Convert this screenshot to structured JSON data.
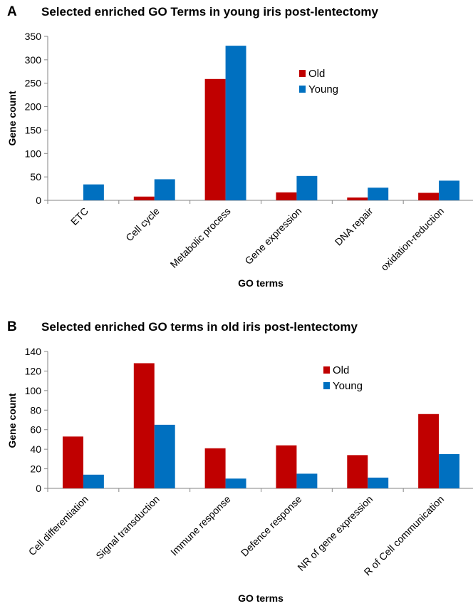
{
  "colors": {
    "old": "#c00000",
    "young": "#0070c0"
  },
  "chart_data": [
    {
      "type": "bar",
      "panel": "A",
      "title": "Selected enriched GO Terms in young iris post-lentectomy",
      "xlabel": "GO terms",
      "ylabel": "Gene count",
      "ylim": [
        0,
        350
      ],
      "yticks": [
        0,
        50,
        100,
        150,
        200,
        250,
        300,
        350
      ],
      "categories": [
        "ETC",
        "Cell cycle",
        "Metabolic process",
        "Gene expression",
        "DNA repair",
        "oxidation-reduction"
      ],
      "series": [
        {
          "name": "Old",
          "values": [
            0,
            8,
            259,
            17,
            6,
            16
          ]
        },
        {
          "name": "Young",
          "values": [
            34,
            45,
            330,
            52,
            27,
            42
          ]
        }
      ],
      "legend_position": "right",
      "grid": false
    },
    {
      "type": "bar",
      "panel": "B",
      "title": "Selected enriched GO terms in old iris post-lentectomy",
      "xlabel": "GO terms",
      "ylabel": "Gene count",
      "ylim": [
        0,
        140
      ],
      "yticks": [
        0,
        20,
        40,
        60,
        80,
        100,
        120,
        140
      ],
      "categories": [
        "Cell differentiation",
        "Signal transduction",
        "Immune response",
        "Defence response",
        "NR of gene expression",
        "R of Cell communication"
      ],
      "series": [
        {
          "name": "Old",
          "values": [
            53,
            128,
            41,
            44,
            34,
            76
          ]
        },
        {
          "name": "Young",
          "values": [
            14,
            65,
            10,
            15,
            11,
            35
          ]
        }
      ],
      "legend_position": "right",
      "grid": false
    }
  ]
}
